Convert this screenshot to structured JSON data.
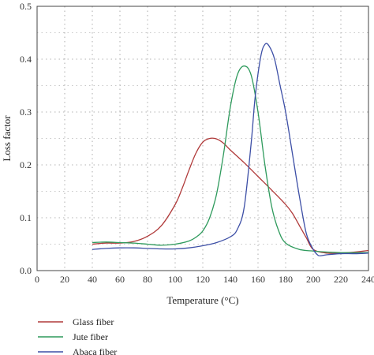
{
  "chart_data": {
    "type": "line",
    "xlabel": "Temperature (°C)",
    "ylabel": "Loss factor",
    "xlim": [
      0,
      240
    ],
    "ylim": [
      0,
      0.5
    ],
    "xticks": [
      0,
      20,
      40,
      60,
      80,
      100,
      120,
      140,
      160,
      180,
      200,
      220,
      240
    ],
    "yticks": [
      0,
      0.1,
      0.2,
      0.3,
      0.4,
      0.5
    ],
    "xtick_labels": [
      "0",
      "20",
      "40",
      "60",
      "80",
      "100",
      "120",
      "140",
      "160",
      "180",
      "200",
      "220",
      "240"
    ],
    "ytick_labels": [
      "0.0",
      "0.1",
      "0.2",
      "0.3",
      "0.4",
      "0.5"
    ],
    "grid": true,
    "legend_position": "below",
    "series": [
      {
        "name": "Glass fiber",
        "color": "#b03a3a",
        "x": [
          40,
          50,
          60,
          70,
          80,
          90,
          100,
          105,
          110,
          115,
          120,
          125,
          130,
          135,
          140,
          150,
          160,
          170,
          180,
          185,
          190,
          195,
          200,
          210,
          220,
          230,
          240
        ],
        "y": [
          0.05,
          0.052,
          0.052,
          0.055,
          0.065,
          0.085,
          0.125,
          0.155,
          0.19,
          0.222,
          0.243,
          0.25,
          0.249,
          0.241,
          0.228,
          0.204,
          0.178,
          0.152,
          0.125,
          0.108,
          0.085,
          0.062,
          0.04,
          0.033,
          0.033,
          0.035,
          0.038
        ]
      },
      {
        "name": "Jute fiber",
        "color": "#2e9a5c",
        "x": [
          40,
          50,
          60,
          70,
          80,
          90,
          100,
          110,
          115,
          120,
          125,
          130,
          135,
          140,
          145,
          150,
          155,
          160,
          165,
          170,
          175,
          180,
          190,
          200,
          210,
          220,
          230,
          240
        ],
        "y": [
          0.053,
          0.054,
          0.053,
          0.052,
          0.05,
          0.048,
          0.05,
          0.056,
          0.063,
          0.075,
          0.1,
          0.145,
          0.22,
          0.31,
          0.37,
          0.387,
          0.37,
          0.3,
          0.2,
          0.12,
          0.075,
          0.052,
          0.04,
          0.037,
          0.035,
          0.034,
          0.034,
          0.034
        ]
      },
      {
        "name": "Abaca fiber",
        "color": "#3d4fa6",
        "x": [
          40,
          50,
          60,
          70,
          80,
          90,
          100,
          110,
          120,
          130,
          140,
          145,
          150,
          155,
          158,
          162,
          165,
          168,
          172,
          176,
          180,
          185,
          190,
          195,
          200,
          203,
          205,
          210,
          220,
          230,
          240
        ],
        "y": [
          0.04,
          0.042,
          0.043,
          0.043,
          0.042,
          0.041,
          0.041,
          0.043,
          0.047,
          0.053,
          0.064,
          0.078,
          0.12,
          0.24,
          0.33,
          0.405,
          0.428,
          0.425,
          0.4,
          0.35,
          0.3,
          0.22,
          0.14,
          0.07,
          0.04,
          0.03,
          0.028,
          0.03,
          0.032,
          0.032,
          0.033
        ]
      }
    ]
  }
}
